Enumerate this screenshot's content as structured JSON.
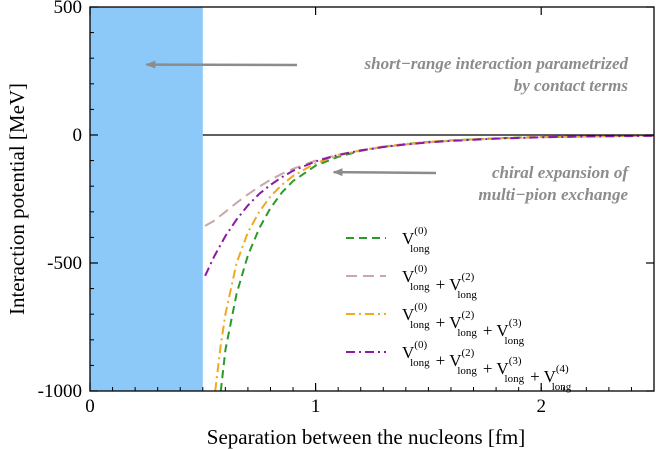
{
  "chart_data": {
    "type": "line",
    "xlabel": "Separation between the nucleons   [fm]",
    "ylabel": "Interaction potential   [MeV]",
    "xlim": [
      0,
      2.5
    ],
    "ylim": [
      -1000,
      500
    ],
    "x_ticks": [
      0,
      1,
      2
    ],
    "y_ticks": [
      500,
      0,
      -500,
      -1000
    ],
    "x_tick_labels": [
      "0",
      "1",
      "2"
    ],
    "y_tick_labels": [
      "500",
      "0",
      "-500",
      "-1000"
    ],
    "grid": false,
    "legend_placement": "bottom-right",
    "shaded_region": {
      "x_from": 0,
      "x_to": 0.5,
      "color": "#8cc8f8"
    },
    "reference_line_y": 0,
    "annotations": [
      {
        "lines": [
          "short−range interaction parametrized",
          "by contact terms"
        ],
        "arrow_to_x": 0.25,
        "arrow_to_y": 275
      },
      {
        "lines": [
          "chiral expansion of",
          "multi−pion exchange"
        ],
        "arrow_to_x": 1.08,
        "arrow_to_y": -145
      }
    ],
    "series": [
      {
        "color": "#2a9a2a",
        "dash": "8,5",
        "legend": {
          "base": "V",
          "terms": [
            "(0)"
          ],
          "sub": "long"
        },
        "x": [
          0.58,
          0.6,
          0.65,
          0.7,
          0.75,
          0.8,
          0.85,
          0.9,
          1.0,
          1.1,
          1.2,
          1.3,
          1.4,
          1.5,
          1.6,
          1.8,
          2.0,
          2.2,
          2.5
        ],
        "y": [
          -1000,
          -840,
          -620,
          -470,
          -365,
          -285,
          -225,
          -180,
          -120,
          -85,
          -62,
          -46,
          -35,
          -27,
          -21,
          -13,
          -8,
          -5,
          -2
        ]
      },
      {
        "color": "#c8a8a8",
        "dash": "11,6",
        "legend": {
          "base": "V",
          "terms": [
            "(0)",
            "(2)"
          ],
          "sub": "long"
        },
        "x": [
          0.51,
          0.55,
          0.6,
          0.65,
          0.7,
          0.75,
          0.8,
          0.85,
          0.9,
          1.0,
          1.1,
          1.2,
          1.3,
          1.4,
          1.5,
          1.6,
          1.8,
          2.0,
          2.2,
          2.5
        ],
        "y": [
          -355,
          -335,
          -300,
          -265,
          -232,
          -202,
          -175,
          -152,
          -132,
          -100,
          -77,
          -60,
          -47,
          -37,
          -29,
          -23,
          -14,
          -9,
          -6,
          -3
        ]
      },
      {
        "color": "#f0a820",
        "dash": "9,4,2,4",
        "legend": {
          "base": "V",
          "terms": [
            "(0)",
            "(2)",
            "(3)"
          ],
          "sub": "long"
        },
        "x": [
          0.555,
          0.58,
          0.6,
          0.65,
          0.7,
          0.75,
          0.8,
          0.85,
          0.9,
          1.0,
          1.1,
          1.2,
          1.3,
          1.4,
          1.5,
          1.6,
          1.8,
          2.0,
          2.2,
          2.5
        ],
        "y": [
          -1000,
          -820,
          -700,
          -500,
          -380,
          -300,
          -240,
          -195,
          -160,
          -110,
          -80,
          -60,
          -45,
          -35,
          -27,
          -21,
          -13,
          -8,
          -5,
          -2
        ]
      },
      {
        "color": "#8a1aa8",
        "dash": "9,4,2,4",
        "legend": {
          "base": "V",
          "terms": [
            "(0)",
            "(2)",
            "(3)",
            "(4)"
          ],
          "sub": "long"
        },
        "x": [
          0.51,
          0.55,
          0.6,
          0.65,
          0.7,
          0.75,
          0.8,
          0.85,
          0.9,
          1.0,
          1.1,
          1.2,
          1.3,
          1.4,
          1.5,
          1.6,
          1.8,
          2.0,
          2.2,
          2.5
        ],
        "y": [
          -550,
          -475,
          -395,
          -330,
          -275,
          -230,
          -195,
          -165,
          -140,
          -103,
          -78,
          -60,
          -47,
          -37,
          -29,
          -23,
          -14,
          -9,
          -6,
          -3
        ]
      }
    ]
  }
}
